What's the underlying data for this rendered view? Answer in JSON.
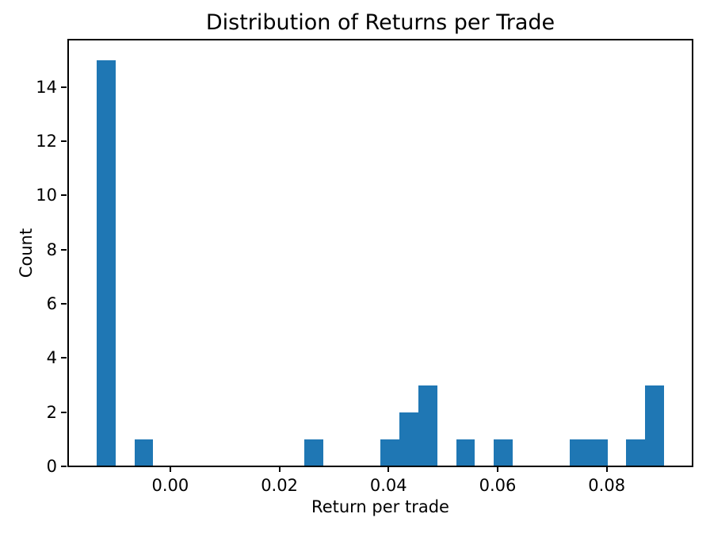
{
  "chart_data": {
    "type": "bar",
    "subtype": "histogram",
    "title": "Distribution of Returns per Trade",
    "xlabel": "Return per trade",
    "ylabel": "Count",
    "bar_color": "#1f77b4",
    "axis_color": "#000000",
    "background": "#ffffff",
    "grid": false,
    "legend": false,
    "xlim": [
      -0.01872,
      0.09573
    ],
    "ylim": [
      0,
      15.75
    ],
    "bin_edges": [
      -0.013518,
      -0.01005,
      -0.006581,
      -0.003113,
      0.000355,
      0.003823,
      0.007292,
      0.01076,
      0.014229,
      0.017697,
      0.021165,
      0.024634,
      0.028102,
      0.031571,
      0.035039,
      0.038507,
      0.041976,
      0.045444,
      0.048913,
      0.052381,
      0.055849,
      0.059318,
      0.062786,
      0.066255,
      0.069723,
      0.073191,
      0.07666,
      0.080128,
      0.083597,
      0.087065,
      0.090533
    ],
    "counts": [
      15,
      0,
      1,
      0,
      0,
      0,
      0,
      0,
      0,
      0,
      0,
      1,
      0,
      0,
      0,
      1,
      2,
      3,
      0,
      1,
      0,
      1,
      0,
      0,
      0,
      1,
      1,
      0,
      1,
      3
    ],
    "xticks": {
      "values": [
        0.0,
        0.02,
        0.04,
        0.06,
        0.08
      ],
      "labels": [
        "0.00",
        "0.02",
        "0.04",
        "0.06",
        "0.08"
      ]
    },
    "yticks": {
      "values": [
        0,
        2,
        4,
        6,
        8,
        10,
        12,
        14
      ],
      "labels": [
        "0",
        "2",
        "4",
        "6",
        "8",
        "10",
        "12",
        "14"
      ]
    }
  }
}
